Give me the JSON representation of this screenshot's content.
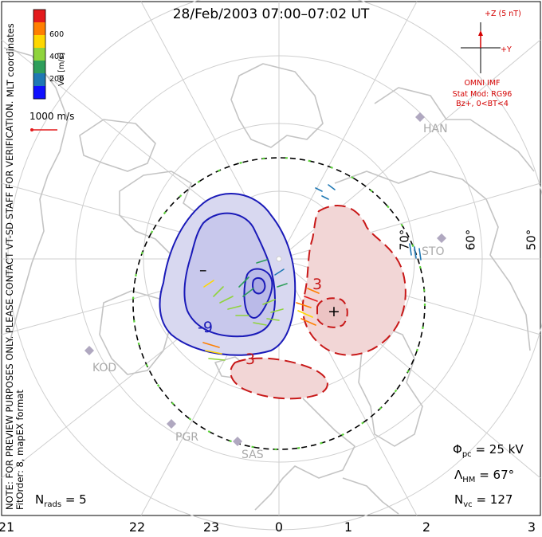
{
  "title": "28/Feb/2003 07:00–07:02 UT",
  "side_text": {
    "line1": "NOTE: FOR PREVIEW PURPOSES ONLY. PLEASE CONTACT VT-SD STAFF FOR VERIFICATION.",
    "line2": "FitOrder: 8, mapEX format",
    "line3": "MLT coordinates"
  },
  "colorbar": {
    "label": "Vel [m/s]",
    "ticks": [
      "600",
      "400",
      "200"
    ],
    "colors": [
      "#e31a1c",
      "#ff7f00",
      "#ffd700",
      "#8fd43c",
      "#2e9e5b",
      "#1f78b4",
      "#1010ff"
    ]
  },
  "velocity_scale": "1000 m/s",
  "imf": {
    "bz_label": "+Z (5 nT)",
    "by_label": "+Y",
    "source": "OMNI IMF",
    "model_line1": "Stat Mod: RG96",
    "model_line2": "Bz+, 0<BT<4"
  },
  "x_ticks": [
    "21",
    "22",
    "23",
    "0",
    "1",
    "2",
    "3"
  ],
  "lat_labels": [
    "70°",
    "60°",
    "50°"
  ],
  "radars": [
    "HAN",
    "KOD",
    "PGR",
    "SAS",
    "STO"
  ],
  "contour_labels": [
    "-9",
    "–",
    "3",
    "3",
    "+"
  ],
  "stats": {
    "phi_pc_label": "Φ",
    "phi_pc_sub": "pc",
    "phi_pc_value": "= 25 kV",
    "lambda_hm_label": "Λ",
    "lambda_hm_sub": "HM",
    "lambda_hm_value": "= 67°",
    "n_vc_label": "N",
    "n_vc_sub": "vc",
    "n_vc_value": "= 127",
    "n_rads_label": "N",
    "n_rads_sub": "rads",
    "n_rads_value": "= 5"
  }
}
